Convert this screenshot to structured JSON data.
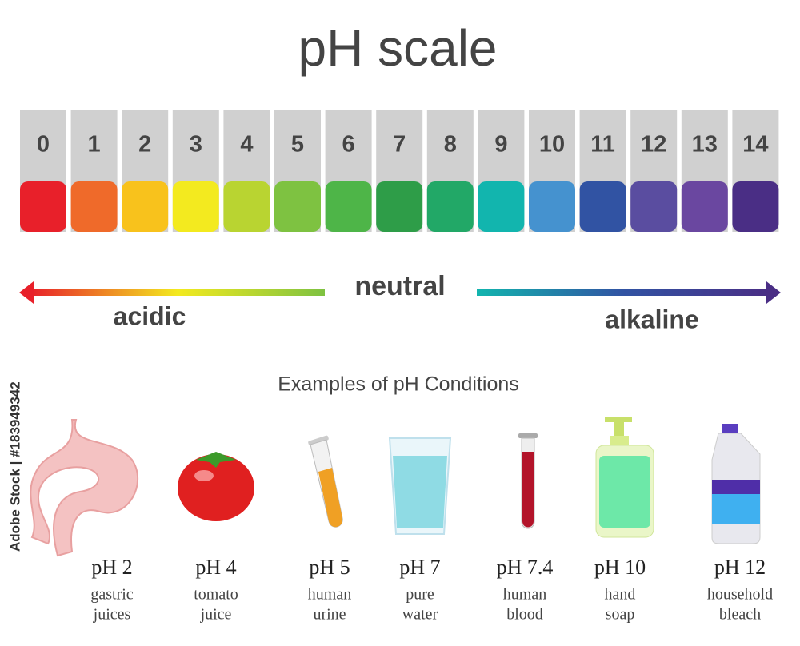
{
  "title": "pH scale",
  "scale": [
    {
      "label": "0",
      "color": "#e8202a"
    },
    {
      "label": "1",
      "color": "#ef6a2a"
    },
    {
      "label": "2",
      "color": "#f8c21c"
    },
    {
      "label": "3",
      "color": "#f3ea1f"
    },
    {
      "label": "4",
      "color": "#b9d431"
    },
    {
      "label": "5",
      "color": "#7ec241"
    },
    {
      "label": "6",
      "color": "#4eb548"
    },
    {
      "label": "7",
      "color": "#2e9d48"
    },
    {
      "label": "8",
      "color": "#22a867"
    },
    {
      "label": "9",
      "color": "#12b5ae"
    },
    {
      "label": "10",
      "color": "#4592cf"
    },
    {
      "label": "11",
      "color": "#3153a3"
    },
    {
      "label": "12",
      "color": "#5a4da0"
    },
    {
      "label": "13",
      "color": "#6a47a0"
    },
    {
      "label": "14",
      "color": "#4a2e85"
    }
  ],
  "arrow": {
    "left": "acidic",
    "center": "neutral",
    "right": "alkaline"
  },
  "examples_title": "Examples of pH Conditions",
  "examples": [
    {
      "ph": "pH 2",
      "lines": [
        "gastric",
        "juices"
      ]
    },
    {
      "ph": "pH 4",
      "lines": [
        "tomato",
        "juice"
      ]
    },
    {
      "ph": "pH 5",
      "lines": [
        "human",
        "urine"
      ]
    },
    {
      "ph": "pH 7",
      "lines": [
        "pure",
        "water"
      ]
    },
    {
      "ph": "pH 7.4",
      "lines": [
        "human",
        "blood"
      ]
    },
    {
      "ph": "pH 10",
      "lines": [
        "hand",
        "soap"
      ]
    },
    {
      "ph": "pH 12",
      "lines": [
        "household",
        "bleach"
      ]
    }
  ],
  "watermark": "Adobe Stock | #183949342"
}
